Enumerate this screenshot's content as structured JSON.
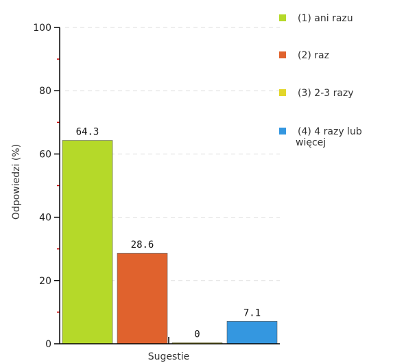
{
  "chart_data": {
    "type": "bar",
    "title": "",
    "xlabel": "Sugestie",
    "ylabel": "Odpowiedzi (%)",
    "ylim": [
      0,
      100
    ],
    "yticks": [
      0,
      20,
      40,
      60,
      80,
      100
    ],
    "grid": true,
    "legend_position": "right",
    "series": [
      {
        "name": "(1) ani razu",
        "value": 64.3,
        "label": "64.3",
        "color": "#b5d929"
      },
      {
        "name": "(2) raz",
        "value": 28.6,
        "label": "28.6",
        "color": "#e0622d"
      },
      {
        "name": "(3) 2-3 razy",
        "value": 0,
        "label": "0",
        "color": "#e2d62b"
      },
      {
        "name": "(4) 4 razy lub więcej",
        "value": 7.1,
        "label": "7.1",
        "color": "#3497e0"
      }
    ]
  }
}
